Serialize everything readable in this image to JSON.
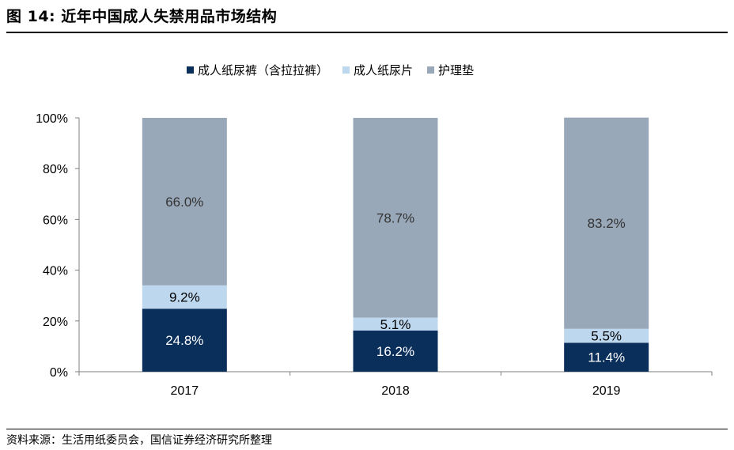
{
  "header": {
    "title": "图 14: 近年中国成人失禁用品市场结构"
  },
  "footer": {
    "source": "资料来源：生活用纸委员会，国信证券经济研究所整理"
  },
  "colors": {
    "series_1": "#0b2f5b",
    "series_2": "#bdd7ee",
    "series_3": "#98a8b8",
    "axis": "#7f7f7f"
  },
  "chart_data": {
    "type": "bar",
    "stacked": true,
    "percent_stacked": true,
    "categories": [
      "2017",
      "2018",
      "2019"
    ],
    "series": [
      {
        "name": "成人纸尿裤（含拉拉裤）",
        "values": [
          24.8,
          16.2,
          11.4
        ],
        "labels": [
          "24.8%",
          "16.2%",
          "11.4%"
        ]
      },
      {
        "name": "成人纸尿片",
        "values": [
          9.2,
          5.1,
          5.5
        ],
        "labels": [
          "9.2%",
          "5.1%",
          "5.5%"
        ]
      },
      {
        "name": "护理垫",
        "values": [
          66.0,
          78.7,
          83.2
        ],
        "labels": [
          "66.0%",
          "78.7%",
          "83.2%"
        ]
      }
    ],
    "y_ticks": [
      "0%",
      "20%",
      "40%",
      "60%",
      "80%",
      "100%"
    ],
    "ylim": [
      0,
      100
    ],
    "grid": false,
    "legend_position": "top"
  }
}
